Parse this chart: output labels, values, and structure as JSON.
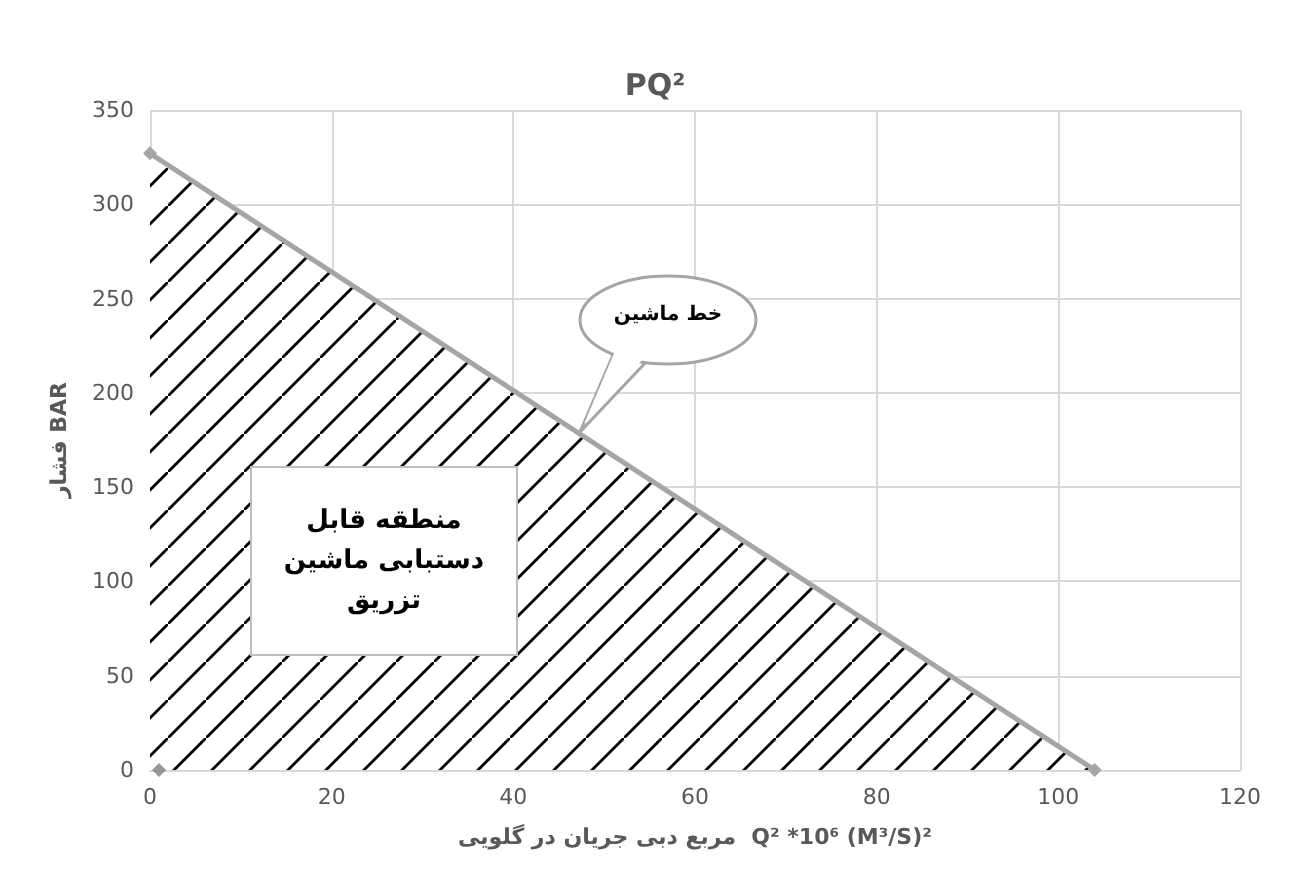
{
  "chart_data": {
    "type": "area",
    "title": "PQ²",
    "xlabel": "مربع دبی جریان در گلویی  Q² *10⁶ (M³/S)²",
    "ylabel": "فشار BAR",
    "series": [
      {
        "color": "#a5a5a5",
        "x": [
          0,
          104
        ],
        "values": [
          327,
          0
        ]
      },
      {
        "type": "scatter",
        "color": "#7f7f7f",
        "x": [
          1
        ],
        "values": [
          0
        ]
      }
    ],
    "xlim": [
      0,
      120
    ],
    "xticks": [
      0,
      20,
      40,
      60,
      80,
      100,
      120
    ],
    "ylim": [
      0,
      350
    ],
    "yticks": [
      0,
      50,
      100,
      150,
      200,
      250,
      300,
      350
    ],
    "grid": true,
    "marker": "diamond",
    "annotations": [
      "خط ماشین",
      "منطقه قابل دستبابی ماشین تزریق"
    ]
  }
}
